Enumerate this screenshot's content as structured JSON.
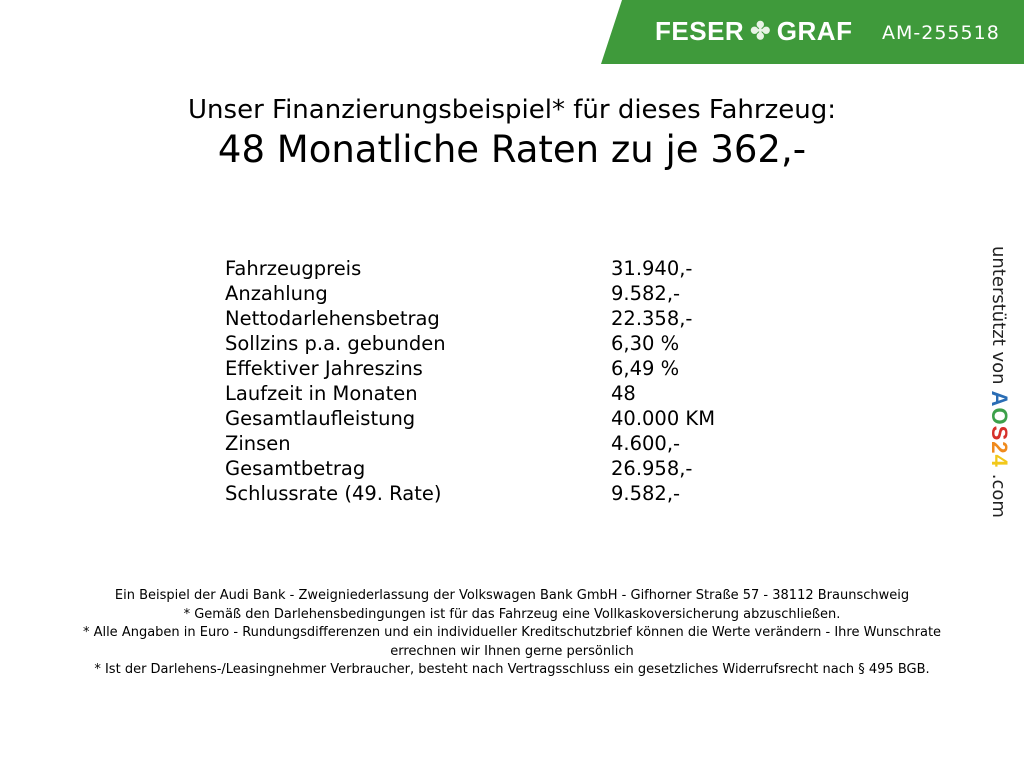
{
  "header": {
    "brand_left": "FESER",
    "brand_right": "GRAF",
    "code": "AM-255518",
    "brand_color": "#3f9a3b"
  },
  "title": {
    "line1": "Unser Finanzierungsbeispiel* für dieses Fahrzeug:",
    "line2": "48 Monatliche Raten zu je 362,-"
  },
  "rows": [
    {
      "label": "Fahrzeugpreis",
      "value": "31.940,-"
    },
    {
      "label": "Anzahlung",
      "value": "9.582,-"
    },
    {
      "label": "Nettodarlehensbetrag",
      "value": "22.358,-"
    },
    {
      "label": "Sollzins p.a. gebunden",
      "value": "6,30 %"
    },
    {
      "label": "Effektiver Jahreszins",
      "value": "6,49 %"
    },
    {
      "label": "Laufzeit in Monaten",
      "value": "48"
    },
    {
      "label": "Gesamtlaufleistung",
      "value": "40.000 KM"
    },
    {
      "label": "Zinsen",
      "value": "4.600,-"
    },
    {
      "label": "Gesamtbetrag",
      "value": "26.958,-"
    },
    {
      "label": "Schlussrate (49. Rate)",
      "value": "9.582,-"
    }
  ],
  "side": {
    "text": "unterstützt von",
    "logo": [
      "A",
      "O",
      "S",
      "2",
      "4"
    ],
    "logo_colors": [
      "#2a6db5",
      "#3ca04a",
      "#d6302a",
      "#f08a1c",
      "#f2c81a"
    ],
    "suffix": ".com"
  },
  "footer": [
    "Ein Beispiel der Audi Bank - Zweigniederlassung der Volkswagen Bank GmbH - Gifhorner Straße 57 - 38112 Braunschweig",
    "* Gemäß den Darlehensbedingungen ist für das Fahrzeug eine Vollkaskoversicherung abzuschließen.",
    "* Alle Angaben in Euro - Rundungsdifferenzen und ein individueller Kreditschutzbrief können die Werte verändern - Ihre Wunschrate errechnen wir Ihnen gerne persönlich",
    "* Ist der Darlehens-/Leasingnehmer Verbraucher, besteht nach Vertragsschluss ein gesetzliches Widerrufsrecht nach § 495 BGB."
  ]
}
